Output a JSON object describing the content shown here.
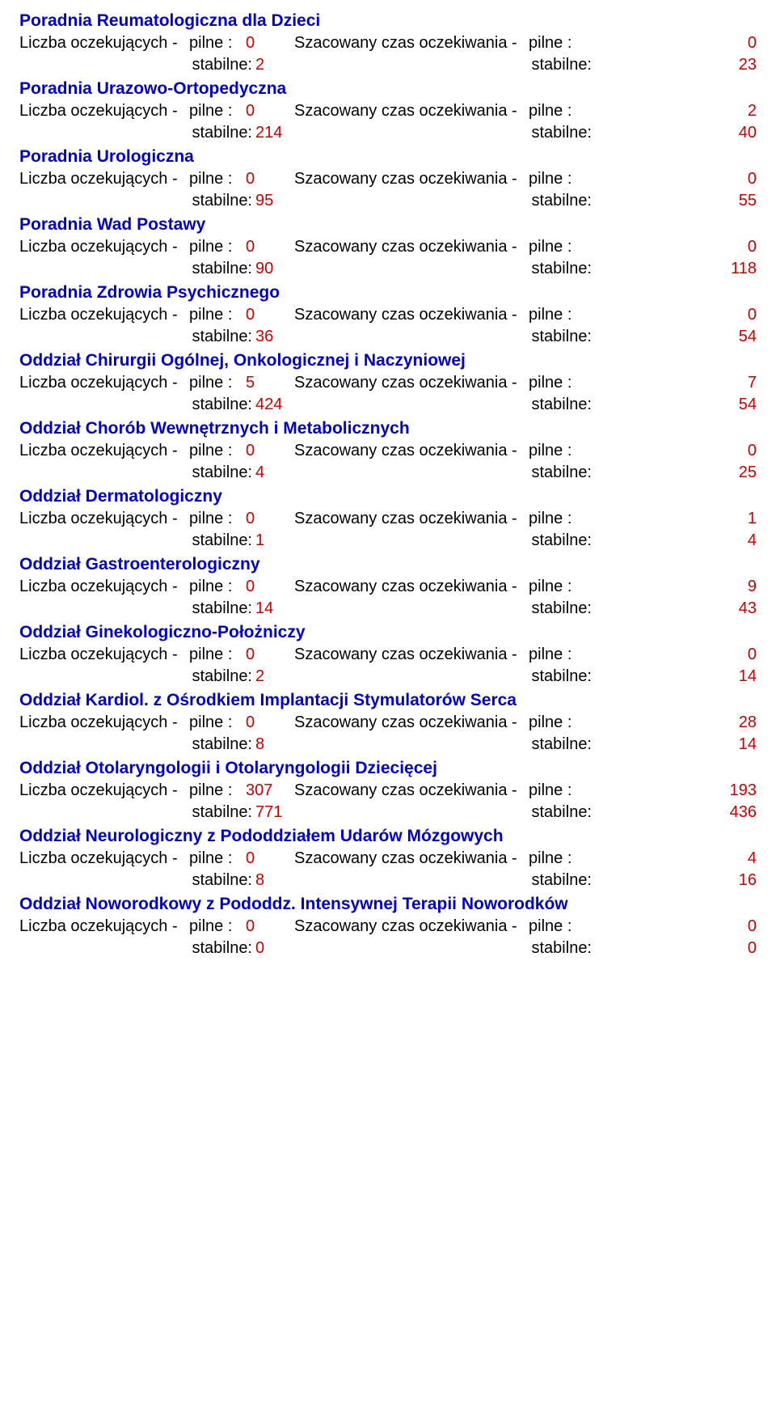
{
  "labels": {
    "waiting": "Liczba oczekujących -",
    "urgent": "pilne :",
    "stable": "stabilne:",
    "time": "Szacowany czas oczekiwania -"
  },
  "colors": {
    "title": "#0000cc",
    "value": "#cc0000",
    "text": "#000000",
    "background": "#ffffff"
  },
  "sections": [
    {
      "title": "Poradnia Reumatologiczna dla Dzieci",
      "waiting_urgent": "0",
      "waiting_stable": "2",
      "time_urgent": "0",
      "time_stable": "23"
    },
    {
      "title": "Poradnia Urazowo-Ortopedyczna",
      "waiting_urgent": "0",
      "waiting_stable": "214",
      "time_urgent": "2",
      "time_stable": "40"
    },
    {
      "title": "Poradnia Urologiczna",
      "waiting_urgent": "0",
      "waiting_stable": "95",
      "time_urgent": "0",
      "time_stable": "55"
    },
    {
      "title": "Poradnia Wad Postawy",
      "waiting_urgent": "0",
      "waiting_stable": "90",
      "time_urgent": "0",
      "time_stable": "118"
    },
    {
      "title": "Poradnia Zdrowia Psychicznego",
      "waiting_urgent": "0",
      "waiting_stable": "36",
      "time_urgent": "0",
      "time_stable": "54"
    },
    {
      "title": "Oddział Chirurgii Ogólnej, Onkologicznej i Naczyniowej",
      "waiting_urgent": "5",
      "waiting_stable": "424",
      "time_urgent": "7",
      "time_stable": "54"
    },
    {
      "title": "Oddział Chorób Wewnętrznych i Metabolicznych",
      "waiting_urgent": "0",
      "waiting_stable": "4",
      "time_urgent": "0",
      "time_stable": "25"
    },
    {
      "title": "Oddział Dermatologiczny",
      "waiting_urgent": "0",
      "waiting_stable": "1",
      "time_urgent": "1",
      "time_stable": "4"
    },
    {
      "title": "Oddział Gastroenterologiczny",
      "waiting_urgent": "0",
      "waiting_stable": "14",
      "time_urgent": "9",
      "time_stable": "43"
    },
    {
      "title": "Oddział Ginekologiczno-Położniczy",
      "waiting_urgent": "0",
      "waiting_stable": "2",
      "time_urgent": "0",
      "time_stable": "14"
    },
    {
      "title": "Oddział Kardiol. z Ośrodkiem Implantacji Stymulatorów Serca",
      "waiting_urgent": "0",
      "waiting_stable": "8",
      "time_urgent": "28",
      "time_stable": "14"
    },
    {
      "title": "Oddział Otolaryngologii i Otolaryngologii Dziecięcej",
      "waiting_urgent": "307",
      "waiting_stable": "771",
      "time_urgent": "193",
      "time_stable": "436"
    },
    {
      "title": "Oddział Neurologiczny z Pododdziałem Udarów Mózgowych",
      "waiting_urgent": "0",
      "waiting_stable": "8",
      "time_urgent": "4",
      "time_stable": "16"
    },
    {
      "title": "Oddział Noworodkowy z Pododdz. Intensywnej Terapii Noworodków",
      "waiting_urgent": "0",
      "waiting_stable": "0",
      "time_urgent": "0",
      "time_stable": "0"
    }
  ]
}
